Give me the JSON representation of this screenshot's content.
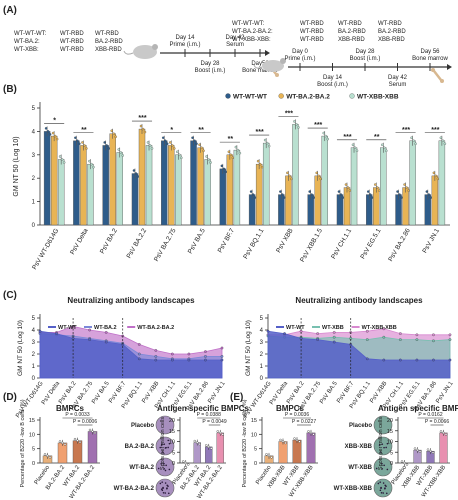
{
  "panel_labels": [
    "(A)",
    "(B)",
    "(C)",
    "(D)",
    "(E)"
  ],
  "schemes": [
    {
      "groups": [
        "WT-WT-WT:",
        "WT-BA.2:",
        "WT-XBB:"
      ],
      "col1": [
        "WT-RBD",
        "WT-RBD",
        "WT-RBD"
      ],
      "col2": [
        "WT-RBD",
        "BA.2-RBD",
        "XBB-RBD"
      ],
      "timeline": [
        {
          "day": "Day 14",
          "event": "Prime (i.m.)",
          "pos": "top"
        },
        {
          "day": "Day 28",
          "event": "Boost (i.m.)",
          "pos": "bottom"
        },
        {
          "day": "Day 42",
          "event": "Serum",
          "pos": "top"
        },
        {
          "day": "Day56",
          "event": "Bone marrow",
          "pos": "bottom"
        }
      ]
    },
    {
      "groups": [
        "WT-WT-WT:",
        "WT-BA.2-BA.2:",
        "WT-XBB-XBB:"
      ],
      "col1": [
        "WT-RBD",
        "WT-RBD",
        "WT-RBD"
      ],
      "col2": [
        "WT-RBD",
        "BA.2-RBD",
        "XBB-RBD"
      ],
      "col3": [
        "WT-RBD",
        "BA.2-RBD",
        "XBB-RBD"
      ],
      "timeline": [
        {
          "day": "Day 0",
          "event": "Prime (i.m.)",
          "pos": "top"
        },
        {
          "day": "Day 14",
          "event": "Boost (i.m.)",
          "pos": "bottom"
        },
        {
          "day": "Day 28",
          "event": "Boost (i.m.)",
          "pos": "top"
        },
        {
          "day": "Day 42",
          "event": "Serum",
          "pos": "bottom"
        },
        {
          "day": "Day 56",
          "event": "Bone marrow",
          "pos": "top"
        }
      ]
    }
  ],
  "chart_data": [
    {
      "type": "bar",
      "ylabel": "GM NT 50 (Log 10)",
      "ylim": [
        0,
        5
      ],
      "yticks": [
        "0",
        "1",
        "2",
        "3",
        "4",
        "5"
      ],
      "legend_position": "top-right",
      "categories": [
        "PsV WT-D614G",
        "PsV Delta",
        "PsV BA.2",
        "PsV BA.2.2",
        "PsV BA.2.75",
        "PsV BA.5",
        "PsV BF.7",
        "PsV BQ.1.1",
        "PsV XBB",
        "PsV XBB.1.5",
        "PsV CH.1.1",
        "PsV EG.5.1",
        "PsV BA.2.86",
        "PsV JN.1"
      ],
      "series": [
        {
          "name": "WT-WT-WT",
          "color": "#2e5c8a",
          "values": [
            4.0,
            3.6,
            3.4,
            2.2,
            3.6,
            3.6,
            2.4,
            1.3,
            1.3,
            1.3,
            1.3,
            1.3,
            1.3,
            1.3
          ]
        },
        {
          "name": "WT-BA.2-BA.2",
          "color": "#e8b455",
          "values": [
            3.8,
            3.4,
            3.9,
            4.1,
            3.4,
            3.3,
            3.0,
            2.6,
            2.1,
            2.1,
            1.6,
            1.6,
            1.6,
            2.1
          ]
        },
        {
          "name": "WT-XBB-XBB",
          "color": "#b9e0d0",
          "values": [
            2.8,
            2.6,
            3.1,
            3.4,
            3.0,
            2.8,
            3.2,
            3.5,
            4.3,
            3.8,
            3.3,
            3.3,
            3.6,
            3.6
          ]
        }
      ],
      "significance": [
        "*",
        "**",
        "",
        "***",
        "*",
        "**",
        "**",
        "***",
        "***",
        "***",
        "***",
        "**",
        "***",
        "***"
      ]
    },
    {
      "type": "area",
      "title": "Neutralizing antibody landscapes",
      "ylabel": "GM NT 50 (Log 10)",
      "ylim": [
        0,
        5
      ],
      "yticks": [
        "0",
        "1",
        "2",
        "3",
        "4",
        "5"
      ],
      "x": [
        "PsV WT-D614G",
        "PsV Delta",
        "PsV BA.2",
        "PsV BA.2.75",
        "PsV BA.5",
        "PsV BF.7",
        "PsV BQ.1.1",
        "PsV XBB",
        "PsV CH.1.1",
        "PsV EG.5.1",
        "PsV BA.2.86",
        "PsV JN.1"
      ],
      "series": [
        {
          "name": "WT-WT",
          "color": "#5560c8",
          "values": [
            3.9,
            3.7,
            3.3,
            3.2,
            3.0,
            2.8,
            1.6,
            1.5,
            1.5,
            1.5,
            1.5,
            1.5
          ]
        },
        {
          "name": "WT-BA.2",
          "color": "#7a88d8",
          "values": [
            3.7,
            3.6,
            3.5,
            3.3,
            3.1,
            2.9,
            2.0,
            1.8,
            1.6,
            1.6,
            1.8,
            1.8
          ]
        },
        {
          "name": "WT-BA.2-BA.2",
          "color": "#c070c8",
          "values": [
            3.8,
            3.8,
            4.3,
            4.0,
            3.8,
            3.5,
            2.8,
            2.3,
            2.0,
            2.0,
            2.2,
            2.5
          ]
        }
      ]
    },
    {
      "type": "area",
      "title": "Neutralizing antibody landscapes",
      "ylabel": "GM NT 50 (Log 10)",
      "ylim": [
        0,
        5
      ],
      "yticks": [
        "0",
        "1",
        "2",
        "3",
        "4",
        "5"
      ],
      "x": [
        "PsV WT-D614G",
        "PsV Delta",
        "PsV BA.2",
        "PsV BA.2.75",
        "PsV BA.5",
        "PsV BF.7",
        "PsV BQ.1.1",
        "PsV XBB",
        "PsV CH.1.1",
        "PsV EG.5.1",
        "PsV BA.2.86",
        "PsV JN.1"
      ],
      "series": [
        {
          "name": "WT-WT",
          "color": "#5560c8",
          "values": [
            3.9,
            3.7,
            3.3,
            3.2,
            3.0,
            2.8,
            1.6,
            1.5,
            1.5,
            1.5,
            1.5,
            1.5
          ]
        },
        {
          "name": "WT-XBB",
          "color": "#78c0b0",
          "values": [
            3.5,
            3.4,
            3.4,
            3.3,
            3.4,
            3.3,
            3.2,
            3.4,
            3.2,
            3.2,
            3.1,
            3.2
          ]
        },
        {
          "name": "WT-XBB-XBB",
          "color": "#d889d0",
          "values": [
            3.6,
            3.6,
            3.9,
            3.7,
            3.8,
            3.8,
            3.9,
            4.1,
            3.7,
            3.6,
            3.6,
            3.6
          ]
        }
      ]
    },
    {
      "type": "bar",
      "title": "BMPCs",
      "ylabel": "Percentage of B220 -low B cells (%)",
      "ylim": [
        0,
        15
      ],
      "yticks": [
        "0",
        "5",
        "10",
        "15"
      ],
      "categories": [
        "Placebo",
        "BA.2-BA.2",
        "WT-BA.2",
        "WT-BA.2-BA.2"
      ],
      "colors": [
        "#e8b07a",
        "#f0a070",
        "#c87850",
        "#a070b0"
      ],
      "values": [
        2.5,
        7.0,
        7.8,
        11.0
      ],
      "pvalues": [
        "P = 0.0033",
        "P = 0.0006"
      ]
    },
    {
      "type": "bar",
      "title": "Antigen specific BMPCs",
      "ylabel": "Spots per million cells",
      "ylim": [
        0,
        20
      ],
      "yticks": [
        "0",
        "5",
        "10",
        "15",
        "20"
      ],
      "categories": [
        "Placebo",
        "BA.2-BA.2",
        "WT-BA.2",
        "WT-BA.2-BA.2"
      ],
      "colors": [
        "#e0c8d8",
        "#b098c8",
        "#9078b8",
        "#e890b0"
      ],
      "values": [
        0,
        9.5,
        7.5,
        14.0
      ],
      "pvalues": [
        "P = 0.0388",
        "P = 0.0049"
      ]
    },
    {
      "type": "bar",
      "title": "BMPCs",
      "ylabel": "Percentage of B220 -low B cells (%)",
      "ylim": [
        0,
        15
      ],
      "yticks": [
        "0",
        "5",
        "10",
        "15"
      ],
      "categories": [
        "Placebo",
        "XBB-XBB",
        "WT-XBB",
        "WT-XBB-XBB"
      ],
      "colors": [
        "#e8b07a",
        "#f0a070",
        "#c87850",
        "#a070b0"
      ],
      "values": [
        2.5,
        7.5,
        8.0,
        10.5
      ],
      "pvalues": [
        "P = 0.0036",
        "P = 0.0227"
      ]
    },
    {
      "type": "bar",
      "title": "Antigen specific BMPCs",
      "ylabel": "Spots per million cells",
      "ylim": [
        0,
        20
      ],
      "yticks": [
        "0",
        "5",
        "10",
        "15",
        "20"
      ],
      "categories": [
        "Placebo",
        "XBB-XBB",
        "WT-XBB",
        "WT-XBB-XBB"
      ],
      "colors": [
        "#e0c8d8",
        "#b098c8",
        "#9078b8",
        "#e890b0"
      ],
      "values": [
        0,
        6.0,
        5.5,
        14.0
      ],
      "pvalues": [
        "P = 0.0162",
        "P = 0.0066"
      ]
    }
  ],
  "elispot": [
    {
      "labels": [
        "Placebo",
        "BA.2-BA.2",
        "WT-BA.2",
        "WT-BA.2-BA.2"
      ],
      "spots": [
        0,
        10,
        7,
        14
      ],
      "well_color": "#8a6aa8"
    },
    {
      "labels": [
        "Placebo",
        "XBB-XBB",
        "WT-XBB",
        "WT-XBB-XBB"
      ],
      "spots": [
        0,
        6,
        5,
        13
      ],
      "well_color": "#4f8a7a"
    }
  ]
}
